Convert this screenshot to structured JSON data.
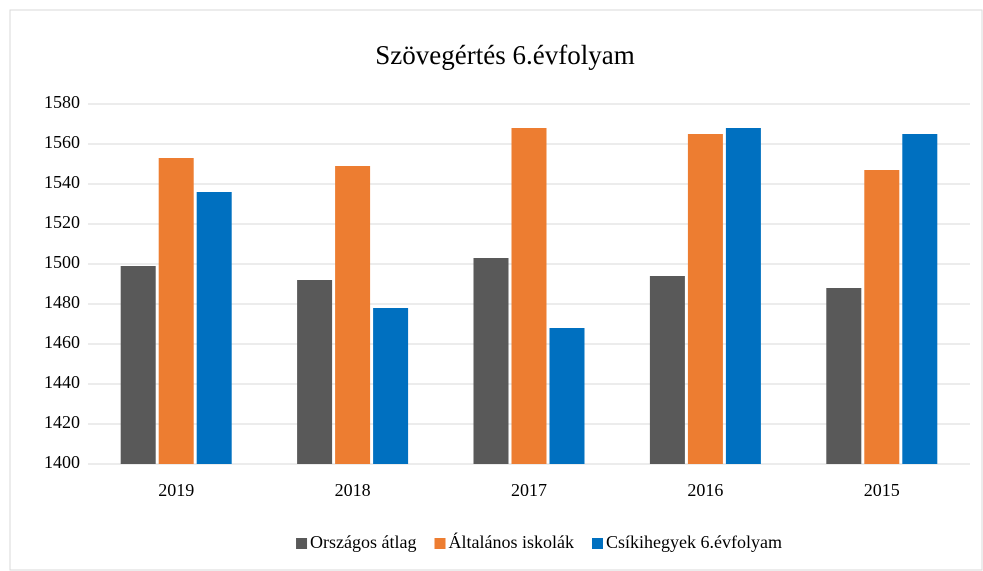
{
  "chart_data": {
    "type": "bar",
    "title": "Szövegértés 6.évfolyam",
    "categories": [
      "2019",
      "2018",
      "2017",
      "2016",
      "2015"
    ],
    "series": [
      {
        "name": "Országos átlag",
        "color": "#595959",
        "values": [
          1499,
          1492,
          1503,
          1494,
          1488
        ]
      },
      {
        "name": "Általános iskolák",
        "color": "#ed7d31",
        "values": [
          1553,
          1549,
          1568,
          1565,
          1547
        ]
      },
      {
        "name": "Csíkihegyek 6.évfolyam",
        "color": "#0070c0",
        "values": [
          1536,
          1478,
          1468,
          1568,
          1565
        ]
      }
    ],
    "ylim": [
      1400,
      1580
    ],
    "yticks": [
      1400,
      1420,
      1440,
      1460,
      1480,
      1500,
      1520,
      1540,
      1560,
      1580
    ],
    "grid": true,
    "legend": "bottom"
  }
}
